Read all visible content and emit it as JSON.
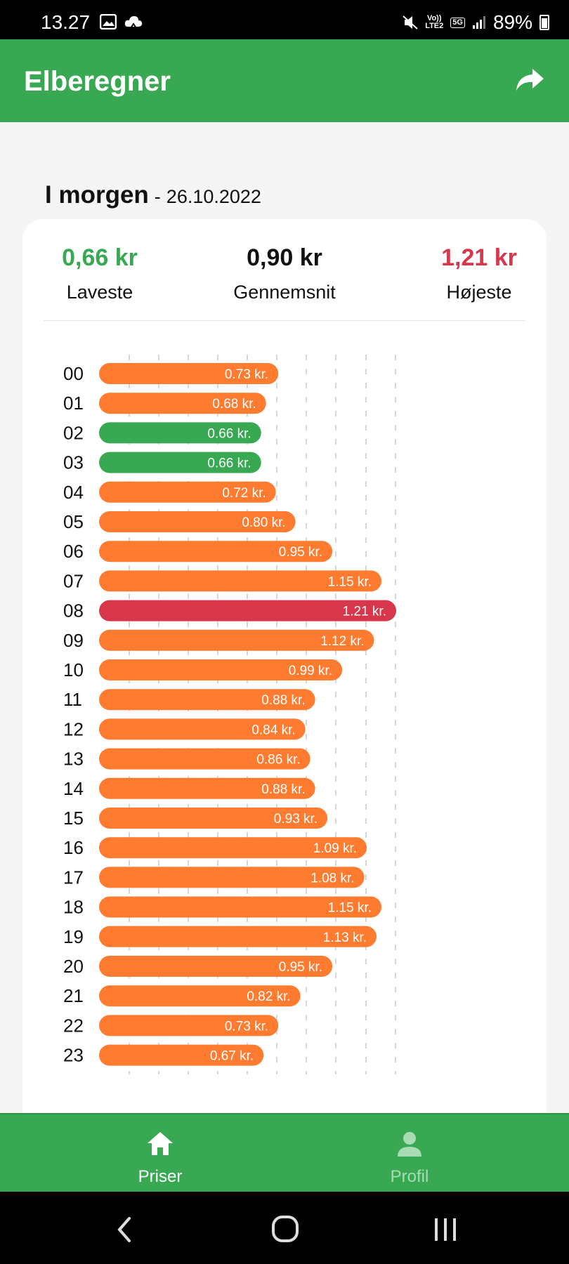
{
  "status_bar": {
    "time": "13.27",
    "icons": [
      "gallery-icon",
      "cloud-icon",
      "mute-icon",
      "volte-icon",
      "5g-icon",
      "signal-icon",
      "battery-icon"
    ],
    "volte_text": "Vo))",
    "lte_text": "LTE2",
    "net_text": "5G",
    "battery": "89%"
  },
  "app_bar": {
    "title": "Elberegner",
    "share_icon": "share-icon"
  },
  "day": {
    "label": "I morgen",
    "separator": "-",
    "date": "26.10.2022"
  },
  "stats": {
    "lowest": {
      "value": "0,66 kr",
      "label": "Laveste",
      "color": "#38a853"
    },
    "average": {
      "value": "0,90 kr",
      "label": "Gennemsnit",
      "color": "#111111"
    },
    "highest": {
      "value": "1,21 kr",
      "label": "Højeste",
      "color": "#d7364b"
    }
  },
  "colors": {
    "normal": "#ff7b2f",
    "lowest": "#38a853",
    "highest": "#d7364b",
    "accent": "#38a853"
  },
  "chart_data": {
    "type": "bar",
    "orientation": "horizontal",
    "categories": [
      "00",
      "01",
      "02",
      "03",
      "04",
      "05",
      "06",
      "07",
      "08",
      "09",
      "10",
      "11",
      "12",
      "13",
      "14",
      "15",
      "16",
      "17",
      "18",
      "19",
      "20",
      "21",
      "22",
      "23"
    ],
    "values": [
      0.73,
      0.68,
      0.66,
      0.66,
      0.72,
      0.8,
      0.95,
      1.15,
      1.21,
      1.12,
      0.99,
      0.88,
      0.84,
      0.86,
      0.88,
      0.93,
      1.09,
      1.08,
      1.15,
      1.13,
      0.95,
      0.82,
      0.73,
      0.67
    ],
    "labels": [
      "0.73 kr.",
      "0.68 kr.",
      "0.66 kr.",
      "0.66 kr.",
      "0.72 kr.",
      "0.80 kr.",
      "0.95 kr.",
      "1.15 kr.",
      "1.21 kr.",
      "1.12 kr.",
      "0.99 kr.",
      "0.88 kr.",
      "0.84 kr.",
      "0.86 kr.",
      "0.88 kr.",
      "0.93 kr.",
      "1.09 kr.",
      "1.08 kr.",
      "1.15 kr.",
      "1.13 kr.",
      "0.95 kr.",
      "0.82 kr.",
      "0.73 kr.",
      "0.67 kr."
    ],
    "xlim": [
      0,
      1.21
    ],
    "grid": true,
    "title": "",
    "xlabel": "",
    "ylabel": ""
  },
  "bottom_nav": {
    "items": [
      {
        "label": "Priser",
        "icon": "home-icon",
        "active": true
      },
      {
        "label": "Profil",
        "icon": "person-icon",
        "active": false
      }
    ]
  },
  "system_nav": {
    "icons": [
      "back-icon",
      "home-circle-icon",
      "recents-icon"
    ]
  }
}
